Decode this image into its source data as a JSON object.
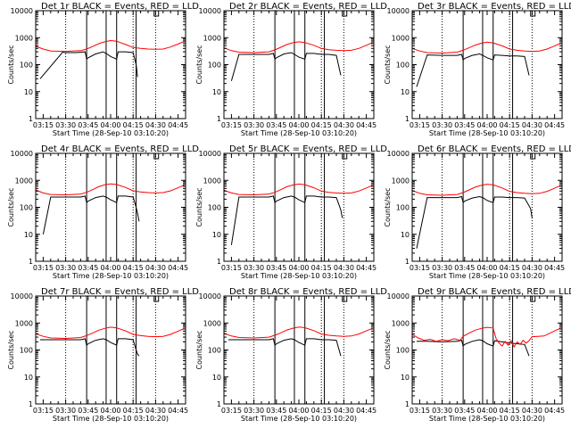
{
  "figure": {
    "x_tick_labels": [
      "03:15",
      "03:30",
      "03:45",
      "04:00",
      "04:15",
      "04:30",
      "04:45"
    ],
    "y_tick_labels": [
      "1",
      "10",
      "100",
      "1000",
      "10000"
    ],
    "ylabel": "Counts/sec",
    "xlabel": "Start Time (28-Sep-10 03:10:20)",
    "colors": {
      "events": "#000000",
      "lld": "#ff0000",
      "axis": "#000000"
    }
  },
  "chart_data": [
    {
      "type": "line",
      "title": "Det 1r BLACK = Events, RED = LLD",
      "xlabel": "Start Time (28-Sep-10 03:10:20)",
      "ylabel": "Counts/sec",
      "x_unit": "minutes after 03:10",
      "xlim": [
        0,
        100
      ],
      "ylim": [
        1,
        10000
      ],
      "y_scale": "log",
      "grid": false,
      "dotted_time_markers": [
        20,
        65,
        80
      ],
      "boxes": [
        [
          34,
          47
        ],
        [
          54,
          67
        ]
      ],
      "series": [
        {
          "name": "Events",
          "color": "#000000",
          "x": [
            3,
            18,
            20,
            22,
            27,
            33,
            34,
            35,
            40,
            45,
            47,
            50,
            54,
            55,
            60,
            65,
            67,
            68
          ],
          "y": [
            30,
            290,
            280,
            280,
            280,
            300,
            160,
            180,
            250,
            300,
            260,
            200,
            160,
            300,
            300,
            280,
            100,
            35
          ]
        },
        {
          "name": "LLD",
          "color": "#ff0000",
          "x": [
            0,
            5,
            10,
            20,
            30,
            34,
            38,
            42,
            46,
            50,
            54,
            60,
            65,
            70,
            75,
            80,
            85,
            90,
            95,
            99
          ],
          "y": [
            480,
            380,
            320,
            310,
            330,
            380,
            470,
            600,
            700,
            780,
            740,
            560,
            430,
            400,
            380,
            370,
            380,
            450,
            580,
            720
          ]
        }
      ]
    },
    {
      "type": "line",
      "title": "Det 2r BLACK = Events, RED = LLD",
      "xlabel": "Start Time (28-Sep-10 03:10:20)",
      "ylabel": "Counts/sec",
      "x_unit": "minutes after 03:10",
      "xlim": [
        0,
        100
      ],
      "ylim": [
        1,
        10000
      ],
      "y_scale": "log",
      "grid": false,
      "dotted_time_markers": [
        20,
        65,
        80
      ],
      "boxes": [
        [
          34,
          47
        ],
        [
          54,
          67
        ]
      ],
      "series": [
        {
          "name": "Events",
          "color": "#000000",
          "x": [
            5,
            10,
            20,
            30,
            33,
            34,
            35,
            40,
            45,
            47,
            50,
            54,
            55,
            60,
            65,
            70,
            75,
            78
          ],
          "y": [
            25,
            240,
            240,
            240,
            260,
            160,
            180,
            250,
            280,
            240,
            190,
            160,
            260,
            260,
            240,
            240,
            220,
            40
          ]
        },
        {
          "name": "LLD",
          "color": "#ff0000",
          "x": [
            0,
            5,
            10,
            20,
            30,
            34,
            38,
            42,
            46,
            50,
            54,
            60,
            65,
            70,
            75,
            80,
            85,
            90,
            95,
            99
          ],
          "y": [
            420,
            330,
            290,
            280,
            300,
            350,
            440,
            560,
            650,
            700,
            660,
            520,
            400,
            360,
            340,
            330,
            340,
            400,
            520,
            650
          ]
        }
      ]
    },
    {
      "type": "line",
      "title": "Det 3r BLACK = Events, RED = LLD",
      "xlabel": "Start Time (28-Sep-10 03:10:20)",
      "ylabel": "Counts/sec",
      "x_unit": "minutes after 03:10",
      "xlim": [
        0,
        100
      ],
      "ylim": [
        1,
        10000
      ],
      "y_scale": "log",
      "grid": false,
      "dotted_time_markers": [
        20,
        65,
        80
      ],
      "boxes": [
        [
          34,
          47
        ],
        [
          54,
          67
        ]
      ],
      "series": [
        {
          "name": "Events",
          "color": "#000000",
          "x": [
            3,
            10,
            20,
            30,
            33,
            34,
            35,
            40,
            45,
            47,
            50,
            54,
            55,
            60,
            65,
            70,
            75,
            78
          ],
          "y": [
            15,
            230,
            220,
            220,
            240,
            150,
            170,
            220,
            250,
            220,
            180,
            150,
            230,
            220,
            210,
            210,
            200,
            40
          ]
        },
        {
          "name": "LLD",
          "color": "#ff0000",
          "x": [
            0,
            5,
            10,
            20,
            30,
            34,
            38,
            42,
            46,
            50,
            54,
            60,
            65,
            70,
            75,
            80,
            85,
            90,
            95,
            99
          ],
          "y": [
            400,
            320,
            280,
            270,
            290,
            340,
            420,
            530,
            620,
            680,
            640,
            500,
            380,
            340,
            320,
            310,
            320,
            380,
            490,
            620
          ]
        }
      ]
    },
    {
      "type": "line",
      "title": "Det 4r BLACK = Events, RED = LLD",
      "xlabel": "Start Time (28-Sep-10 03:10:20)",
      "ylabel": "Counts/sec",
      "x_unit": "minutes after 03:10",
      "xlim": [
        0,
        100
      ],
      "ylim": [
        1,
        10000
      ],
      "y_scale": "log",
      "grid": false,
      "dotted_time_markers": [
        20,
        65,
        80
      ],
      "boxes": [
        [
          34,
          47
        ],
        [
          54,
          67
        ]
      ],
      "series": [
        {
          "name": "Events",
          "color": "#000000",
          "x": [
            5,
            10,
            20,
            30,
            33,
            34,
            35,
            40,
            45,
            47,
            50,
            54,
            55,
            60,
            65,
            67,
            68,
            69
          ],
          "y": [
            10,
            240,
            240,
            240,
            260,
            150,
            170,
            230,
            260,
            240,
            190,
            150,
            260,
            260,
            240,
            100,
            60,
            30
          ]
        },
        {
          "name": "LLD",
          "color": "#ff0000",
          "x": [
            0,
            5,
            10,
            20,
            30,
            34,
            38,
            42,
            46,
            50,
            54,
            60,
            65,
            70,
            75,
            80,
            85,
            90,
            95,
            99
          ],
          "y": [
            440,
            340,
            300,
            290,
            310,
            360,
            450,
            580,
            680,
            740,
            700,
            540,
            410,
            370,
            350,
            340,
            350,
            410,
            530,
            660
          ]
        }
      ]
    },
    {
      "type": "line",
      "title": "Det 5r BLACK = Events, RED = LLD",
      "xlabel": "Start Time (28-Sep-10 03:10:20)",
      "ylabel": "Counts/sec",
      "x_unit": "minutes after 03:10",
      "xlim": [
        0,
        100
      ],
      "ylim": [
        1,
        10000
      ],
      "y_scale": "log",
      "grid": false,
      "dotted_time_markers": [
        20,
        65,
        80
      ],
      "boxes": [
        [
          34,
          47
        ],
        [
          54,
          67
        ]
      ],
      "series": [
        {
          "name": "Events",
          "color": "#000000",
          "x": [
            5,
            10,
            20,
            30,
            33,
            34,
            35,
            40,
            45,
            47,
            50,
            54,
            55,
            60,
            65,
            70,
            75,
            78,
            79
          ],
          "y": [
            4,
            240,
            240,
            240,
            260,
            150,
            170,
            230,
            260,
            240,
            190,
            150,
            260,
            260,
            240,
            240,
            230,
            80,
            40
          ]
        },
        {
          "name": "LLD",
          "color": "#ff0000",
          "x": [
            0,
            5,
            10,
            20,
            30,
            34,
            38,
            42,
            46,
            50,
            54,
            60,
            65,
            70,
            75,
            80,
            85,
            90,
            95,
            99
          ],
          "y": [
            430,
            340,
            300,
            290,
            310,
            360,
            450,
            580,
            670,
            730,
            690,
            530,
            400,
            360,
            340,
            330,
            340,
            400,
            520,
            650
          ]
        }
      ]
    },
    {
      "type": "line",
      "title": "Det 6r BLACK = Events, RED = LLD",
      "xlabel": "Start Time (28-Sep-10 03:10:20)",
      "ylabel": "Counts/sec",
      "x_unit": "minutes after 03:10",
      "xlim": [
        0,
        100
      ],
      "ylim": [
        1,
        10000
      ],
      "y_scale": "log",
      "grid": false,
      "dotted_time_markers": [
        20,
        65,
        80
      ],
      "boxes": [
        [
          34,
          47
        ],
        [
          54,
          67
        ]
      ],
      "series": [
        {
          "name": "Events",
          "color": "#000000",
          "x": [
            3,
            10,
            20,
            30,
            33,
            34,
            35,
            40,
            45,
            47,
            50,
            54,
            55,
            60,
            65,
            70,
            75,
            79,
            80
          ],
          "y": [
            3,
            230,
            230,
            230,
            250,
            150,
            170,
            220,
            250,
            230,
            180,
            150,
            240,
            240,
            230,
            230,
            220,
            90,
            40
          ]
        },
        {
          "name": "LLD",
          "color": "#ff0000",
          "x": [
            0,
            5,
            10,
            20,
            30,
            34,
            38,
            42,
            46,
            50,
            54,
            60,
            65,
            70,
            75,
            80,
            85,
            90,
            95,
            99
          ],
          "y": [
            420,
            330,
            290,
            280,
            300,
            350,
            440,
            560,
            650,
            720,
            680,
            520,
            390,
            350,
            330,
            320,
            330,
            390,
            510,
            640
          ]
        }
      ]
    },
    {
      "type": "line",
      "title": "Det 7r BLACK = Events, RED = LLD",
      "xlabel": "Start Time (28-Sep-10 03:10:20)",
      "ylabel": "Counts/sec",
      "x_unit": "minutes after 03:10",
      "xlim": [
        0,
        100
      ],
      "ylim": [
        1,
        10000
      ],
      "y_scale": "log",
      "grid": false,
      "dotted_time_markers": [
        20,
        65,
        80
      ],
      "boxes": [
        [
          34,
          47
        ],
        [
          54,
          67
        ]
      ],
      "series": [
        {
          "name": "Events",
          "color": "#000000",
          "x": [
            3,
            10,
            20,
            30,
            33,
            34,
            35,
            40,
            45,
            47,
            50,
            54,
            55,
            60,
            65,
            67,
            68,
            69
          ],
          "y": [
            240,
            240,
            240,
            240,
            260,
            150,
            170,
            230,
            260,
            240,
            190,
            150,
            260,
            260,
            240,
            100,
            70,
            60
          ]
        },
        {
          "name": "LLD",
          "color": "#ff0000",
          "x": [
            0,
            5,
            10,
            20,
            30,
            34,
            38,
            42,
            46,
            50,
            54,
            60,
            65,
            70,
            75,
            80,
            85,
            90,
            95,
            99
          ],
          "y": [
            400,
            320,
            280,
            270,
            290,
            340,
            420,
            540,
            630,
            700,
            660,
            510,
            380,
            340,
            320,
            310,
            320,
            380,
            500,
            620
          ]
        }
      ]
    },
    {
      "type": "line",
      "title": "Det 8r BLACK = Events, RED = LLD",
      "xlabel": "Start Time (28-Sep-10 03:10:20)",
      "ylabel": "Counts/sec",
      "x_unit": "minutes after 03:10",
      "xlim": [
        0,
        100
      ],
      "ylim": [
        1,
        10000
      ],
      "y_scale": "log",
      "grid": false,
      "dotted_time_markers": [
        20,
        65,
        80
      ],
      "boxes": [
        [
          34,
          47
        ],
        [
          54,
          67
        ]
      ],
      "series": [
        {
          "name": "Events",
          "color": "#000000",
          "x": [
            3,
            10,
            20,
            30,
            33,
            34,
            35,
            40,
            45,
            47,
            50,
            54,
            55,
            60,
            65,
            70,
            75,
            78
          ],
          "y": [
            240,
            240,
            240,
            240,
            260,
            150,
            170,
            230,
            260,
            240,
            190,
            150,
            260,
            260,
            240,
            240,
            230,
            60
          ]
        },
        {
          "name": "LLD",
          "color": "#ff0000",
          "x": [
            0,
            5,
            10,
            20,
            30,
            34,
            38,
            42,
            46,
            50,
            54,
            60,
            65,
            70,
            75,
            80,
            85,
            90,
            95,
            99
          ],
          "y": [
            410,
            330,
            290,
            280,
            300,
            350,
            430,
            550,
            640,
            710,
            670,
            520,
            390,
            350,
            330,
            320,
            330,
            390,
            510,
            630
          ]
        }
      ]
    },
    {
      "type": "line",
      "title": "Det 9r BLACK = Events, RED = LLD",
      "xlabel": "Start Time (28-Sep-10 03:10:20)",
      "ylabel": "Counts/sec",
      "x_unit": "minutes after 03:10",
      "xlim": [
        0,
        100
      ],
      "ylim": [
        1,
        10000
      ],
      "y_scale": "log",
      "grid": false,
      "dotted_time_markers": [
        20,
        65,
        80
      ],
      "boxes": [
        [
          34,
          47
        ],
        [
          54,
          67
        ]
      ],
      "series": [
        {
          "name": "Events",
          "color": "#000000",
          "x": [
            3,
            10,
            20,
            30,
            33,
            34,
            35,
            40,
            45,
            47,
            50,
            54,
            55,
            60,
            65,
            70,
            75,
            78
          ],
          "y": [
            210,
            210,
            200,
            210,
            230,
            140,
            160,
            210,
            240,
            220,
            170,
            140,
            220,
            200,
            180,
            170,
            160,
            60
          ]
        },
        {
          "name": "LLD",
          "color": "#ff0000",
          "x": [
            0,
            4,
            8,
            12,
            16,
            20,
            24,
            28,
            32,
            34,
            38,
            42,
            46,
            50,
            54,
            56,
            58,
            60,
            62,
            64,
            66,
            68,
            70,
            72,
            74,
            76,
            78,
            80,
            84,
            88,
            92,
            96,
            99
          ],
          "y": [
            380,
            280,
            230,
            250,
            210,
            240,
            220,
            260,
            230,
            320,
            420,
            540,
            630,
            690,
            650,
            260,
            180,
            140,
            210,
            150,
            220,
            130,
            200,
            160,
            230,
            180,
            220,
            310,
            320,
            330,
            420,
            540,
            640
          ]
        }
      ]
    }
  ]
}
